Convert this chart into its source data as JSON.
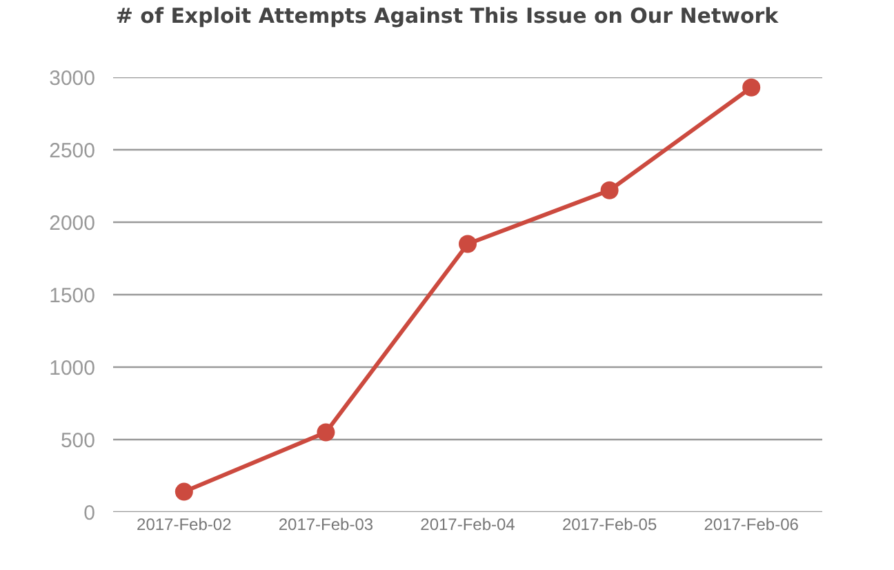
{
  "chart_data": {
    "type": "line",
    "title": "# of Exploit Attempts Against This Issue on Our Network",
    "categories": [
      "2017-Feb-02",
      "2017-Feb-03",
      "2017-Feb-04",
      "2017-Feb-05",
      "2017-Feb-06"
    ],
    "series": [
      {
        "color": "#cc4a3f",
        "values": [
          140,
          550,
          1850,
          2220,
          2930
        ]
      }
    ],
    "ylim": [
      0,
      3000
    ],
    "yticks": [
      0,
      500,
      1000,
      1500,
      2000,
      2500,
      3000
    ],
    "grid": "y",
    "marker": "circle",
    "line_style": "solid"
  }
}
